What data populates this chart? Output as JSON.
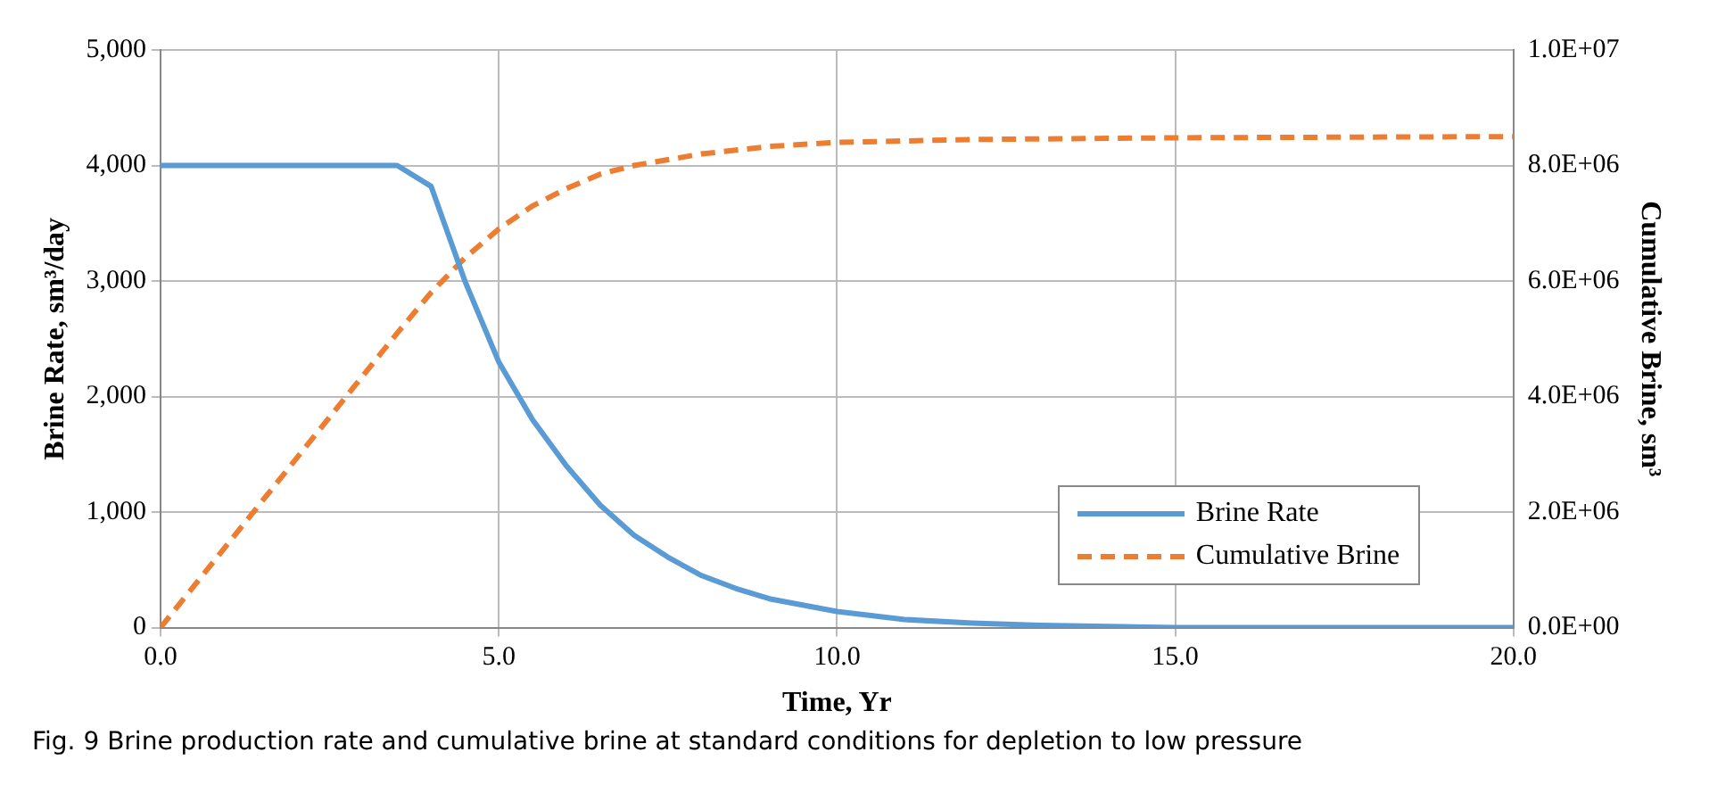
{
  "chart_data": {
    "type": "line",
    "xlabel": "Time, Yr",
    "ylabel": "Brine Rate, sm³/day",
    "y2label": "Cumulative Brine, sm³",
    "xlim": [
      0,
      20
    ],
    "xticks": [
      {
        "value": 0,
        "label": "0.0"
      },
      {
        "value": 5,
        "label": "5.0"
      },
      {
        "value": 10,
        "label": "10.0"
      },
      {
        "value": 15,
        "label": "15.0"
      },
      {
        "value": 20,
        "label": "20.0"
      }
    ],
    "ylim": [
      0,
      5000
    ],
    "yticks": [
      {
        "value": 0,
        "label": "0"
      },
      {
        "value": 1000,
        "label": "1,000"
      },
      {
        "value": 2000,
        "label": "2,000"
      },
      {
        "value": 3000,
        "label": "3,000"
      },
      {
        "value": 4000,
        "label": "4,000"
      },
      {
        "value": 5000,
        "label": "5,000"
      }
    ],
    "y2lim": [
      0,
      10000000
    ],
    "y2ticks": [
      {
        "value": 0,
        "label": "0.0E+00"
      },
      {
        "value": 2000000,
        "label": "2.0E+06"
      },
      {
        "value": 4000000,
        "label": "4.0E+06"
      },
      {
        "value": 6000000,
        "label": "6.0E+06"
      },
      {
        "value": 8000000,
        "label": "8.0E+06"
      },
      {
        "value": 10000000,
        "label": "1.0E+07"
      }
    ],
    "grid": true,
    "legend": "bottom right",
    "marker": "none",
    "series": [
      {
        "name": "Brine Rate",
        "color": "#5b9bd5",
        "line_style": "solid",
        "x": [
          0,
          3.5,
          4,
          4.5,
          5,
          5.5,
          6,
          6.5,
          7,
          7.5,
          8,
          8.5,
          9,
          10,
          11,
          12,
          13,
          15,
          17,
          20
        ],
        "values": [
          4000,
          4000,
          3820,
          3000,
          2300,
          1800,
          1400,
          1060,
          800,
          610,
          450,
          340,
          250,
          140,
          70,
          40,
          20,
          0,
          0,
          0
        ]
      },
      {
        "name": "Cumulative Brine",
        "color": "#ed7d31",
        "line_style": "dashed",
        "axis": "y2",
        "x": [
          0,
          3.5,
          4,
          4.5,
          5,
          5.5,
          6,
          6.5,
          7,
          7.5,
          8,
          9,
          10,
          12,
          15,
          20
        ],
        "values": [
          0,
          5100000,
          5800000,
          6400000,
          6900000,
          7300000,
          7600000,
          7850000,
          8000000,
          8100000,
          8200000,
          8330000,
          8400000,
          8450000,
          8480000,
          8500000
        ]
      }
    ],
    "annotations": [
      "Fig. 9 Brine production rate and cumulative brine at standard conditions for depletion to low pressure"
    ]
  }
}
